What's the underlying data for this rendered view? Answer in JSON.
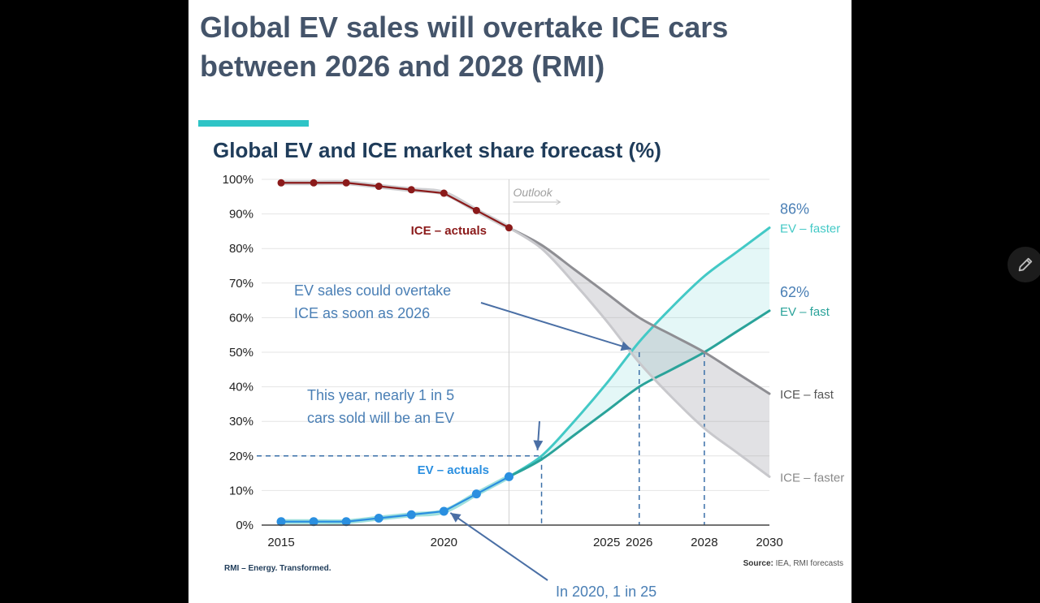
{
  "slide": {
    "headline": "Global EV sales will overtake ICE cars between 2026 and 2028 (RMI)",
    "brand": "RMI – Energy. Transformed.",
    "source_prefix": "Source:",
    "source_text": "IEA, RMI forecasts"
  },
  "colors": {
    "background": "#000000",
    "headline": "#44546a",
    "accent": "#2ec4c6",
    "ice_actual": "#8b1a1a",
    "ev_actual": "#2a8fe0",
    "ev_faster": "#43c9c6",
    "ev_fast": "#2aa39a",
    "ice_fast": "#8e8e93",
    "ice_faster": "#c8c8cc",
    "annotation": "#4a7fb5"
  },
  "icons": {
    "pen": "pencil-icon"
  },
  "chart_data": {
    "type": "line",
    "title": "Global EV and ICE market share forecast (%)",
    "xlabel": "",
    "ylabel": "",
    "xlim": [
      2015,
      2030
    ],
    "ylim": [
      0,
      100
    ],
    "y_ticks": [
      "0%",
      "10%",
      "20%",
      "30%",
      "40%",
      "50%",
      "60%",
      "70%",
      "80%",
      "90%",
      "100%"
    ],
    "x_ticks": [
      {
        "value": 2015,
        "label": "2015",
        "highlight": false
      },
      {
        "value": 2020,
        "label": "2020",
        "highlight": false
      },
      {
        "value": 2025,
        "label": "2025",
        "highlight": false
      },
      {
        "value": 2026,
        "label": "2026",
        "highlight": true
      },
      {
        "value": 2028,
        "label": "2028",
        "highlight": true
      },
      {
        "value": 2030,
        "label": "2030",
        "highlight": false
      }
    ],
    "outlook_label": "Outlook",
    "outlook_start": 2022,
    "series": [
      {
        "name": "ICE – actuals",
        "kind": "actual",
        "x": [
          2015,
          2016,
          2017,
          2018,
          2019,
          2020,
          2021,
          2022
        ],
        "values": [
          99,
          99,
          99,
          98,
          97,
          96,
          91,
          86
        ]
      },
      {
        "name": "EV – actuals",
        "kind": "actual",
        "x": [
          2015,
          2016,
          2017,
          2018,
          2019,
          2020,
          2021,
          2022
        ],
        "values": [
          1,
          1,
          1,
          2,
          3,
          4,
          9,
          14
        ]
      },
      {
        "name": "EV – faster",
        "kind": "forecast",
        "x": [
          2022,
          2023,
          2024,
          2025,
          2026,
          2027,
          2028,
          2029,
          2030
        ],
        "values": [
          14,
          20,
          30,
          41,
          53,
          63,
          72,
          79,
          86
        ]
      },
      {
        "name": "EV – fast",
        "kind": "forecast",
        "x": [
          2022,
          2023,
          2024,
          2025,
          2026,
          2027,
          2028,
          2029,
          2030
        ],
        "values": [
          14,
          19,
          26,
          33,
          40,
          45,
          50,
          56,
          62
        ]
      },
      {
        "name": "ICE – fast",
        "kind": "forecast",
        "x": [
          2022,
          2023,
          2024,
          2025,
          2026,
          2027,
          2028,
          2029,
          2030
        ],
        "values": [
          86,
          81,
          74,
          67,
          60,
          55,
          50,
          44,
          38
        ]
      },
      {
        "name": "ICE – faster",
        "kind": "forecast",
        "x": [
          2022,
          2023,
          2024,
          2025,
          2026,
          2027,
          2028,
          2029,
          2030
        ],
        "values": [
          86,
          80,
          70,
          59,
          47,
          37,
          28,
          21,
          14
        ]
      }
    ],
    "end_values": [
      {
        "series": "EV – faster",
        "text": "86%"
      },
      {
        "series": "EV – fast",
        "text": "62%"
      }
    ],
    "annotations": [
      {
        "lines": [
          "EV sales could overtake",
          "ICE as soon as 2026"
        ],
        "target": [
          2026,
          50
        ]
      },
      {
        "lines": [
          "This year, nearly 1 in 5",
          "cars sold will be an EV"
        ],
        "target": [
          2023,
          20
        ]
      },
      {
        "lines": [
          "In 2020, 1 in 25"
        ],
        "target": [
          2020,
          4
        ]
      }
    ],
    "reference_lines": [
      {
        "x": 2023,
        "y": 20
      },
      {
        "x": 2026,
        "y": 50
      },
      {
        "x": 2028,
        "y": 50
      }
    ]
  }
}
